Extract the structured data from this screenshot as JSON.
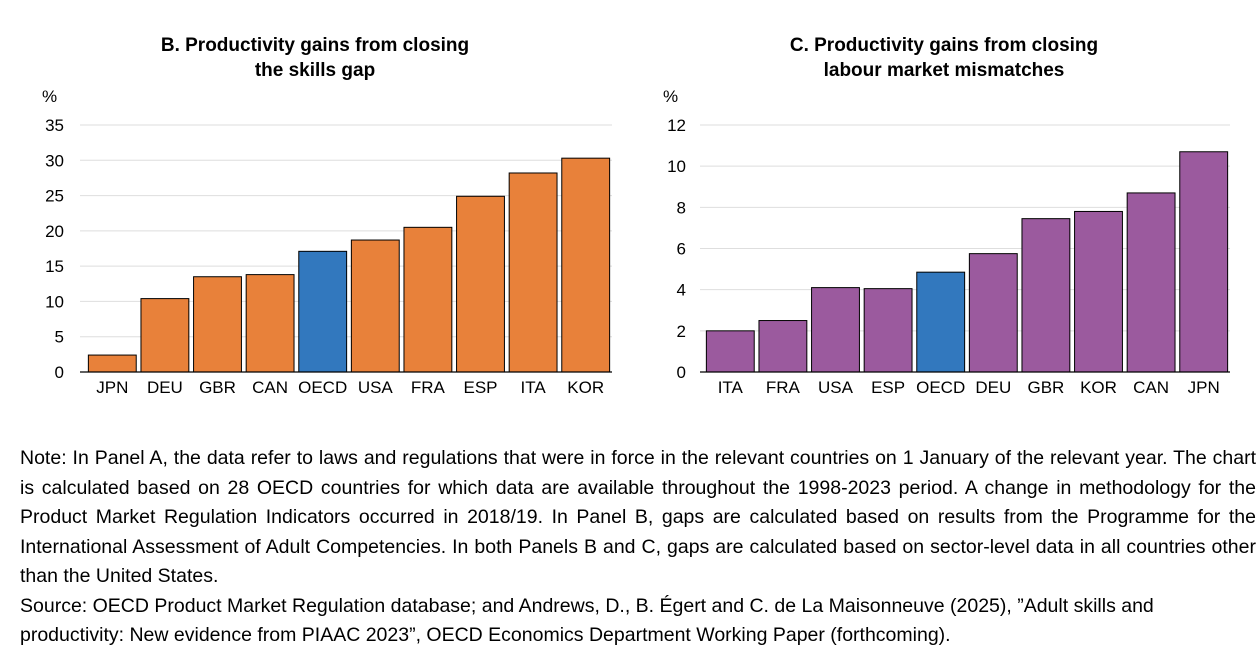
{
  "chart_data": [
    {
      "type": "bar",
      "title_lines": [
        "B. Productivity gains from closing",
        "the skills gap"
      ],
      "ylabel": "%",
      "ylim": [
        0,
        35
      ],
      "yticks": [
        0,
        5,
        10,
        15,
        20,
        25,
        30,
        35
      ],
      "grid": true,
      "categories": [
        "JPN",
        "DEU",
        "GBR",
        "CAN",
        "OECD",
        "USA",
        "FRA",
        "ESP",
        "ITA",
        "KOR"
      ],
      "values": [
        2.4,
        10.4,
        13.5,
        13.8,
        17.1,
        18.7,
        20.5,
        24.9,
        28.2,
        30.3
      ],
      "colors": [
        "#E8813A",
        "#E8813A",
        "#E8813A",
        "#E8813A",
        "#3278BE",
        "#E8813A",
        "#E8813A",
        "#E8813A",
        "#E8813A",
        "#E8813A"
      ]
    },
    {
      "type": "bar",
      "title_lines": [
        "C. Productivity gains from closing",
        "labour market mismatches"
      ],
      "ylabel": "%",
      "ylim": [
        0,
        12
      ],
      "yticks": [
        0,
        2,
        4,
        6,
        8,
        10,
        12
      ],
      "grid": true,
      "categories": [
        "ITA",
        "FRA",
        "USA",
        "ESP",
        "OECD",
        "DEU",
        "GBR",
        "KOR",
        "CAN",
        "JPN"
      ],
      "values": [
        2.0,
        2.5,
        4.1,
        4.05,
        4.85,
        5.75,
        7.45,
        7.8,
        8.7,
        10.7
      ],
      "colors": [
        "#9B5A9E",
        "#9B5A9E",
        "#9B5A9E",
        "#9B5A9E",
        "#3278BE",
        "#9B5A9E",
        "#9B5A9E",
        "#9B5A9E",
        "#9B5A9E",
        "#9B5A9E"
      ]
    }
  ],
  "notes": {
    "note": "Note: In Panel A, the data refer to laws and regulations that were in force in the relevant countries on 1 January of the relevant year. The chart is calculated based on 28 OECD countries for which data are available throughout the 1998-2023 period. A change in methodology for the Product Market Regulation Indicators occurred in 2018/19. In Panel B, gaps are calculated based on results from the Programme for the International Assessment of Adult Competencies. In both Panels B and C, gaps are calculated based on sector-level data in all countries other than the United States.",
    "source": "Source: OECD Product Market Regulation database; and Andrews, D., B. Égert and C. de La Maisonneuve (2025), ”Adult skills and productivity: New evidence from PIAAC 2023”, OECD Economics Department Working Paper (forthcoming)."
  }
}
